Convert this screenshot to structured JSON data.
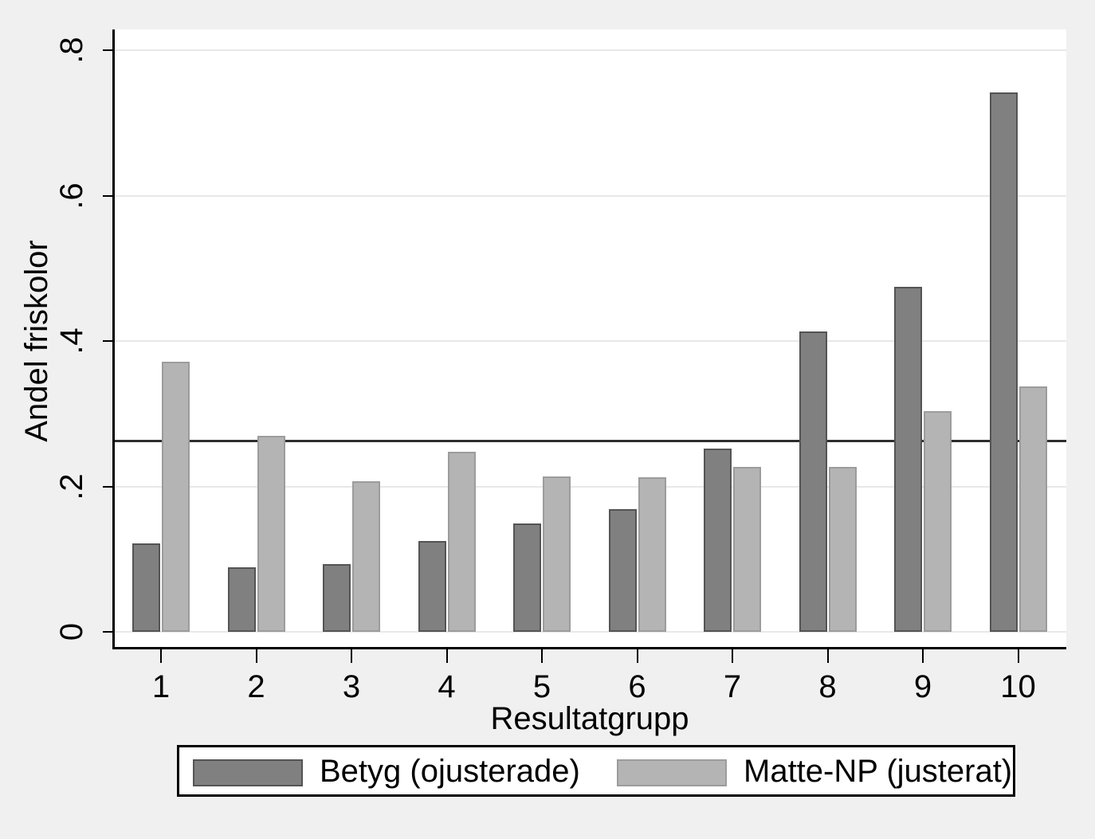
{
  "chart_data": {
    "type": "bar",
    "title": "",
    "xlabel": "Resultatgrupp",
    "ylabel": "Andel friskolor",
    "categories": [
      "1",
      "2",
      "3",
      "4",
      "5",
      "6",
      "7",
      "8",
      "9",
      "10"
    ],
    "series": [
      {
        "name": "Betyg (ojusterade)",
        "color": "#808080",
        "border_color": "#545454",
        "values": [
          0.122,
          0.089,
          0.093,
          0.125,
          0.149,
          0.169,
          0.252,
          0.413,
          0.474,
          0.742
        ]
      },
      {
        "name": "Matte-NP (justerat)",
        "color": "#b4b4b4",
        "border_color": "#9c9c9c",
        "values": [
          0.372,
          0.27,
          0.207,
          0.248,
          0.214,
          0.213,
          0.227,
          0.227,
          0.304,
          0.338
        ]
      }
    ],
    "yticks": [
      "0",
      ".2",
      ".4",
      ".6",
      ".8"
    ],
    "ytick_values": [
      0,
      0.2,
      0.4,
      0.6,
      0.8
    ],
    "ylim": [
      0,
      0.8
    ],
    "reference_line": 0.263,
    "grid": true,
    "legend_position": "bottom",
    "colors": {
      "background": "#f0f0f0",
      "plot_background": "#ffffff",
      "gridline": "#e8e8e8",
      "axis": "#000000",
      "reference_line": "#2e2e2e"
    }
  }
}
